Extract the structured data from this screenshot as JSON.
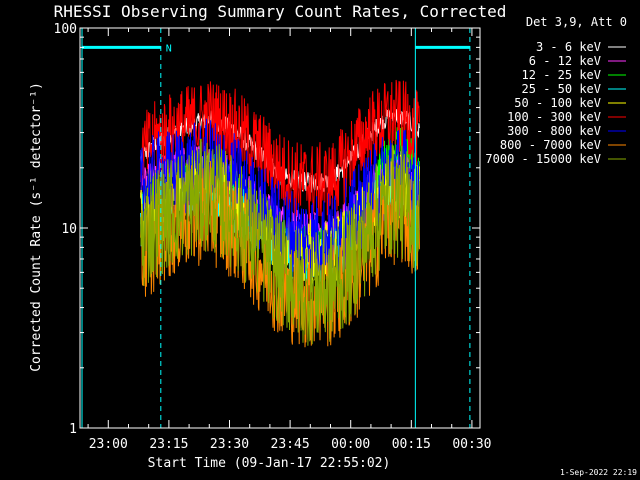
{
  "chart_data": {
    "type": "line",
    "title": "RHESSI Observing Summary Count Rates, Corrected",
    "xlabel": "Start Time (09-Jan-17 22:55:02)",
    "ylabel": "Corrected Count Rate (s⁻¹ detector⁻¹)",
    "yscale": "log",
    "ylim": [
      1,
      100
    ],
    "xlim_minutes": [
      -7,
      92
    ],
    "x_ticks": [
      {
        "label": "23:00",
        "m": 0
      },
      {
        "label": "23:15",
        "m": 15
      },
      {
        "label": "23:30",
        "m": 30
      },
      {
        "label": "23:45",
        "m": 45
      },
      {
        "label": "00:00",
        "m": 60
      },
      {
        "label": "00:15",
        "m": 75
      },
      {
        "label": "00:30",
        "m": 90
      }
    ],
    "y_ticks": [
      {
        "label": "100",
        "v": 100
      },
      {
        "label": "10",
        "v": 10
      },
      {
        "label": "1",
        "v": 1
      }
    ],
    "legend": {
      "header": "Det 3,9, Att 0",
      "placement": "right"
    },
    "x_minutes": [
      8,
      12,
      18,
      25,
      31,
      37,
      43,
      48,
      55,
      60,
      65,
      70,
      74,
      77
    ],
    "series": [
      {
        "name": "3 - 6 keV",
        "color": "#ffffff",
        "values": [
          22,
          27,
          31,
          35,
          31,
          24,
          18,
          17,
          17,
          22,
          30,
          37,
          35,
          30
        ]
      },
      {
        "name": "6 - 12 keV",
        "color": "#ff33ff",
        "values": [
          16,
          19,
          21,
          23,
          19,
          14,
          11,
          10,
          10,
          12,
          17,
          21,
          20,
          17
        ]
      },
      {
        "name": "12 - 25 keV",
        "color": "#00ff00",
        "values": [
          13,
          15,
          17,
          19,
          16,
          12,
          9,
          8,
          8,
          10,
          15,
          26,
          25,
          18
        ]
      },
      {
        "name": "25 - 50 keV",
        "color": "#00ffff",
        "values": [
          11,
          13,
          15,
          16,
          13,
          10,
          7.5,
          7,
          7,
          8.5,
          12,
          17,
          16,
          13
        ]
      },
      {
        "name": "50 - 100 keV",
        "color": "#ffff00",
        "values": [
          12,
          14,
          16,
          17,
          14,
          11,
          8,
          7.5,
          7.5,
          9,
          13,
          17,
          16,
          14
        ]
      },
      {
        "name": "100 - 300 keV",
        "color": "#ff0000",
        "values": [
          23,
          28,
          32,
          36,
          32,
          25,
          19,
          17,
          17,
          23,
          31,
          36,
          34,
          30
        ]
      },
      {
        "name": "300 - 800 keV",
        "color": "#0000ff",
        "values": [
          15,
          18,
          19,
          21,
          18,
          13,
          10,
          9,
          9,
          11,
          15,
          20,
          19,
          16
        ]
      },
      {
        "name": "800 - 7000 keV",
        "color": "#ff8800",
        "values": [
          7,
          9,
          11,
          12,
          10,
          7,
          5,
          4.5,
          4.5,
          5.5,
          8,
          12,
          11,
          9
        ]
      },
      {
        "name": "7000 - 15000 keV",
        "color": "#88aa00",
        "values": [
          9,
          11,
          13,
          15,
          12,
          8.5,
          6,
          5,
          5,
          6.5,
          10,
          14,
          13,
          11
        ]
      }
    ],
    "markers": {
      "n_label": "N",
      "cyan_solid_minutes": [
        -6.5,
        76
      ],
      "cyan_dashed_minutes": [
        13,
        89.5
      ],
      "cyan_bars_minutes": [
        [
          -6.5,
          13
        ],
        [
          76,
          89.5
        ]
      ],
      "cyan_bar_value": 80
    },
    "grid": false
  },
  "timestamp": "1-Sep-2022 22:19",
  "colors": {
    "background": "#000000",
    "axis": "#ffffff",
    "marker": "#00ffff"
  }
}
